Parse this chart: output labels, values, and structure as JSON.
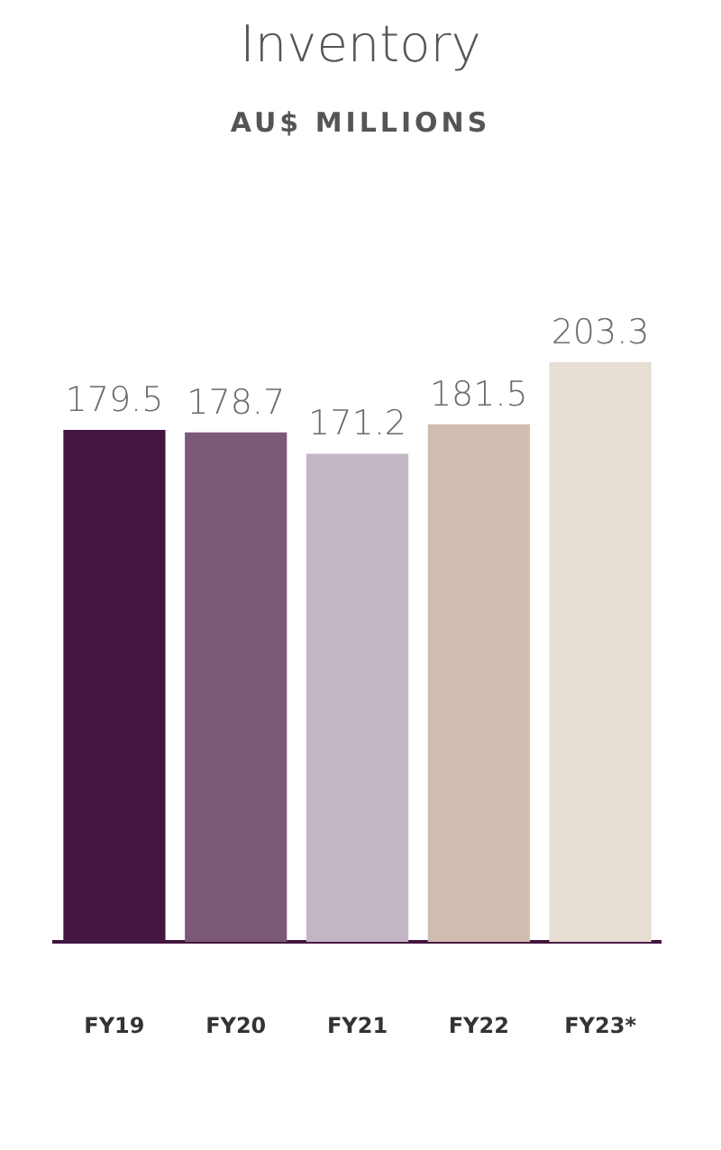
{
  "chart_data": {
    "type": "bar",
    "title": "Inventory",
    "subtitle": "AU$ MILLIONS",
    "categories": [
      "FY19",
      "FY20",
      "FY21",
      "FY22",
      "FY23*"
    ],
    "values": [
      179.5,
      178.7,
      171.2,
      181.5,
      203.3
    ],
    "colors": [
      "#43153f",
      "#7b5a78",
      "#c3b6c4",
      "#d1bdb0",
      "#e6ddd3"
    ],
    "data_labels": true
  }
}
